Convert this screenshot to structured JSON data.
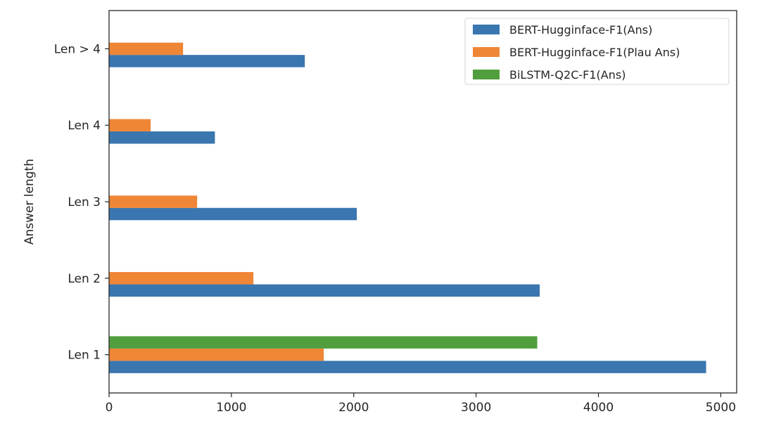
{
  "chart_data": {
    "type": "bar",
    "orientation": "horizontal",
    "title": "",
    "xlabel": "",
    "ylabel": "Answer length",
    "categories": [
      "Len 1",
      "Len 2",
      "Len 3",
      "Len 4",
      "Len > 4"
    ],
    "series": [
      {
        "name": "BERT-Hugginface-F1(Ans)",
        "color": "#3a76af",
        "values": [
          4880,
          3520,
          2025,
          865,
          1600
        ]
      },
      {
        "name": "BERT-Hugginface-F1(Plau Ans)",
        "color": "#ef8636",
        "values": [
          1755,
          1180,
          720,
          340,
          605
        ]
      },
      {
        "name": "BiLSTM-Q2C-F1(Ans)",
        "color": "#519e3e",
        "values": [
          3500,
          0,
          0,
          0,
          0
        ]
      }
    ],
    "xlim": [
      0,
      5130
    ],
    "xticks": [
      0,
      1000,
      2000,
      3000,
      4000,
      5000
    ],
    "grid": false,
    "legend_position": "top-right"
  }
}
